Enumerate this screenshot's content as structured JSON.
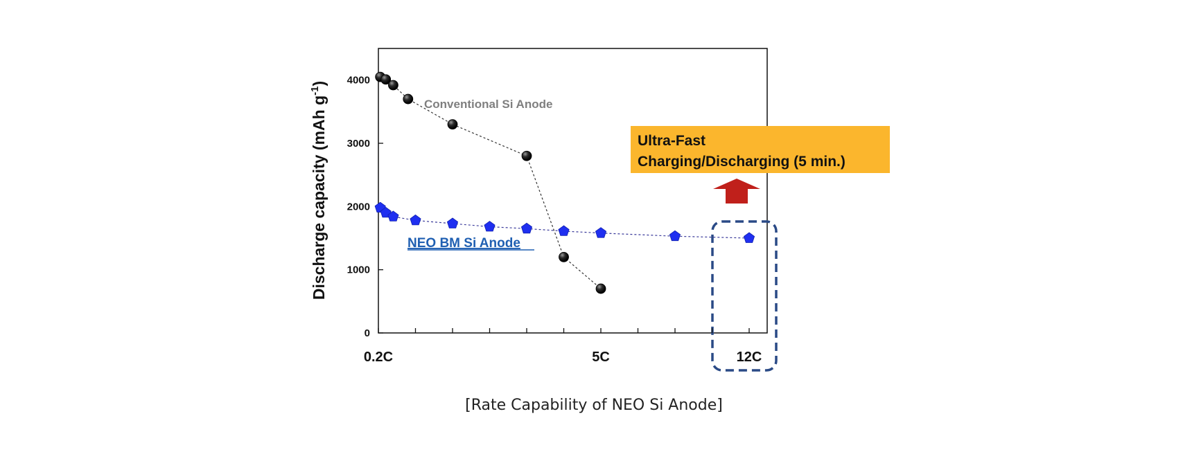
{
  "chart_data": {
    "type": "line",
    "ylabel": "Discharge capacity (mAh g",
    "ylabel_superscript": "-1",
    "ylabel_suffix": ")",
    "ylim": [
      0,
      4500
    ],
    "yticks": [
      "0",
      "1000",
      "2000",
      "3000",
      "4000"
    ],
    "xticks": [
      "0.2C",
      "5C",
      "12C"
    ],
    "x_positions_note": "Non-linear rate axis; x values are the 1-based index of each rate step shown on the plot",
    "xlim": [
      1,
      11
    ],
    "series": [
      {
        "name": "Conventional Si Anode",
        "marker": "sphere",
        "color": "#111111",
        "x": [
          1.05,
          1.2,
          1.4,
          1.8,
          3.0,
          5.0,
          6.0,
          7.0
        ],
        "values": [
          4050,
          4010,
          3920,
          3700,
          3300,
          2800,
          1200,
          700
        ]
      },
      {
        "name": "NEO BM Si Anode",
        "marker": "pentagon",
        "color": "#1f2ff0",
        "x": [
          1.05,
          1.2,
          1.4,
          2.0,
          3.0,
          4.0,
          5.0,
          6.0,
          7.0,
          9.0,
          11.0
        ],
        "values": [
          1980,
          1900,
          1840,
          1780,
          1730,
          1680,
          1650,
          1610,
          1580,
          1530,
          1500
        ]
      }
    ],
    "grid": false,
    "caption": "[Rate Capability of NEO Si Anode]",
    "callout": {
      "lines": [
        "Ultra-Fast",
        "Charging/Discharging (5 min.)"
      ],
      "background": "#fbb62d",
      "arrow_color": "#c0201b",
      "highlight_border": "#2a4a86"
    }
  }
}
